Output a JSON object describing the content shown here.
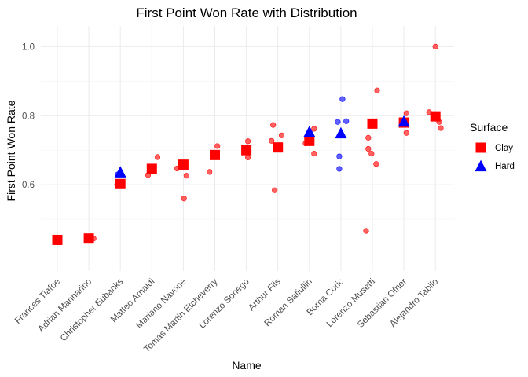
{
  "chart_data": {
    "type": "scatter",
    "title": "First Point Won Rate with Distribution",
    "xlabel": "Name",
    "ylabel": "First Point Won Rate",
    "ylim": [
      0.35,
      1.06
    ],
    "yticks": [
      0.6,
      0.8,
      1.0
    ],
    "ytick_labels": [
      "0.6",
      "0.8",
      "1.0"
    ],
    "grid": true,
    "categories": [
      "Frances Tiafoe",
      "Adrian Mannarino",
      "Christopher Eubanks",
      "Matteo Arnaldi",
      "Mariano Navone",
      "Tomas Martin Etcheverry",
      "Lorenzo Sonego",
      "Arthur Fils",
      "Roman Safiullin",
      "Borna Coric",
      "Lorenzo Musetti",
      "Sebastian Ofner",
      "Alejandro Tabilo"
    ],
    "legend": {
      "title": "Surface",
      "position": "right",
      "entries": [
        {
          "label": "Clay",
          "color": "#ff0000",
          "shape": "square"
        },
        {
          "label": "Hard",
          "color": "#0000ff",
          "shape": "triangle"
        }
      ]
    },
    "series": [
      {
        "name": "Clay",
        "kind": "mean",
        "color": "#ff0000",
        "shape": "square",
        "points": [
          {
            "x": "Frances Tiafoe",
            "y": 0.44
          },
          {
            "x": "Adrian Mannarino",
            "y": 0.444
          },
          {
            "x": "Christopher Eubanks",
            "y": 0.602
          },
          {
            "x": "Matteo Arnaldi",
            "y": 0.646
          },
          {
            "x": "Mariano Navone",
            "y": 0.658
          },
          {
            "x": "Tomas Martin Etcheverry",
            "y": 0.686
          },
          {
            "x": "Lorenzo Sonego",
            "y": 0.7
          },
          {
            "x": "Arthur Fils",
            "y": 0.708
          },
          {
            "x": "Roman Safiullin",
            "y": 0.727
          },
          {
            "x": "Lorenzo Musetti",
            "y": 0.777
          },
          {
            "x": "Sebastian Ofner",
            "y": 0.78
          },
          {
            "x": "Alejandro Tabilo",
            "y": 0.798
          }
        ]
      },
      {
        "name": "Hard",
        "kind": "mean",
        "color": "#0000ff",
        "shape": "triangle",
        "points": [
          {
            "x": "Christopher Eubanks",
            "y": 0.635
          },
          {
            "x": "Roman Safiullin",
            "y": 0.752
          },
          {
            "x": "Borna Coric",
            "y": 0.748
          },
          {
            "x": "Sebastian Ofner",
            "y": 0.782
          }
        ]
      },
      {
        "name": "Clay",
        "kind": "individual",
        "color": "#ff0000",
        "shape": "circle",
        "points": [
          {
            "x": "Adrian Mannarino",
            "dx": 0.15,
            "y": 0.444
          },
          {
            "x": "Christopher Eubanks",
            "dx": -0.1,
            "y": 0.6
          },
          {
            "x": "Matteo Arnaldi",
            "dx": -0.12,
            "y": 0.628
          },
          {
            "x": "Matteo Arnaldi",
            "dx": 0.18,
            "y": 0.68
          },
          {
            "x": "Mariano Navone",
            "dx": -0.2,
            "y": 0.647
          },
          {
            "x": "Mariano Navone",
            "dx": 0.02,
            "y": 0.56
          },
          {
            "x": "Mariano Navone",
            "dx": 0.1,
            "y": 0.626
          },
          {
            "x": "Tomas Martin Etcheverry",
            "dx": -0.17,
            "y": 0.637
          },
          {
            "x": "Tomas Martin Etcheverry",
            "dx": 0.08,
            "y": 0.712
          },
          {
            "x": "Lorenzo Sonego",
            "dx": 0.05,
            "y": 0.726
          },
          {
            "x": "Lorenzo Sonego",
            "dx": 0.05,
            "y": 0.679
          },
          {
            "x": "Arthur Fils",
            "dx": -0.2,
            "y": 0.727
          },
          {
            "x": "Arthur Fils",
            "dx": -0.15,
            "y": 0.773
          },
          {
            "x": "Arthur Fils",
            "dx": 0.12,
            "y": 0.743
          },
          {
            "x": "Arthur Fils",
            "dx": -0.1,
            "y": 0.584
          },
          {
            "x": "Roman Safiullin",
            "dx": -0.12,
            "y": 0.72
          },
          {
            "x": "Roman Safiullin",
            "dx": 0.15,
            "y": 0.762
          },
          {
            "x": "Roman Safiullin",
            "dx": 0.15,
            "y": 0.69
          },
          {
            "x": "Lorenzo Musetti",
            "dx": -0.13,
            "y": 0.736
          },
          {
            "x": "Lorenzo Musetti",
            "dx": -0.13,
            "y": 0.704
          },
          {
            "x": "Lorenzo Musetti",
            "dx": -0.03,
            "y": 0.69
          },
          {
            "x": "Lorenzo Musetti",
            "dx": 0.15,
            "y": 0.873
          },
          {
            "x": "Lorenzo Musetti",
            "dx": 0.12,
            "y": 0.66
          },
          {
            "x": "Lorenzo Musetti",
            "dx": -0.2,
            "y": 0.466
          },
          {
            "x": "Sebastian Ofner",
            "dx": 0.08,
            "y": 0.807
          },
          {
            "x": "Sebastian Ofner",
            "dx": 0.08,
            "y": 0.75
          },
          {
            "x": "Alejandro Tabilo",
            "dx": -0.2,
            "y": 0.81
          },
          {
            "x": "Alejandro Tabilo",
            "dx": 0.12,
            "y": 0.782
          },
          {
            "x": "Alejandro Tabilo",
            "dx": 0.17,
            "y": 0.764
          },
          {
            "x": "Alejandro Tabilo",
            "dx": 0.0,
            "y": 1.0
          }
        ]
      },
      {
        "name": "Hard",
        "kind": "individual",
        "color": "#0000ff",
        "shape": "circle",
        "points": [
          {
            "x": "Christopher Eubanks",
            "dx": -0.08,
            "y": 0.63
          },
          {
            "x": "Borna Coric",
            "dx": -0.1,
            "y": 0.782
          },
          {
            "x": "Borna Coric",
            "dx": 0.05,
            "y": 0.848
          },
          {
            "x": "Borna Coric",
            "dx": 0.17,
            "y": 0.784
          },
          {
            "x": "Borna Coric",
            "dx": -0.05,
            "y": 0.682
          },
          {
            "x": "Borna Coric",
            "dx": -0.05,
            "y": 0.646
          }
        ]
      }
    ]
  }
}
